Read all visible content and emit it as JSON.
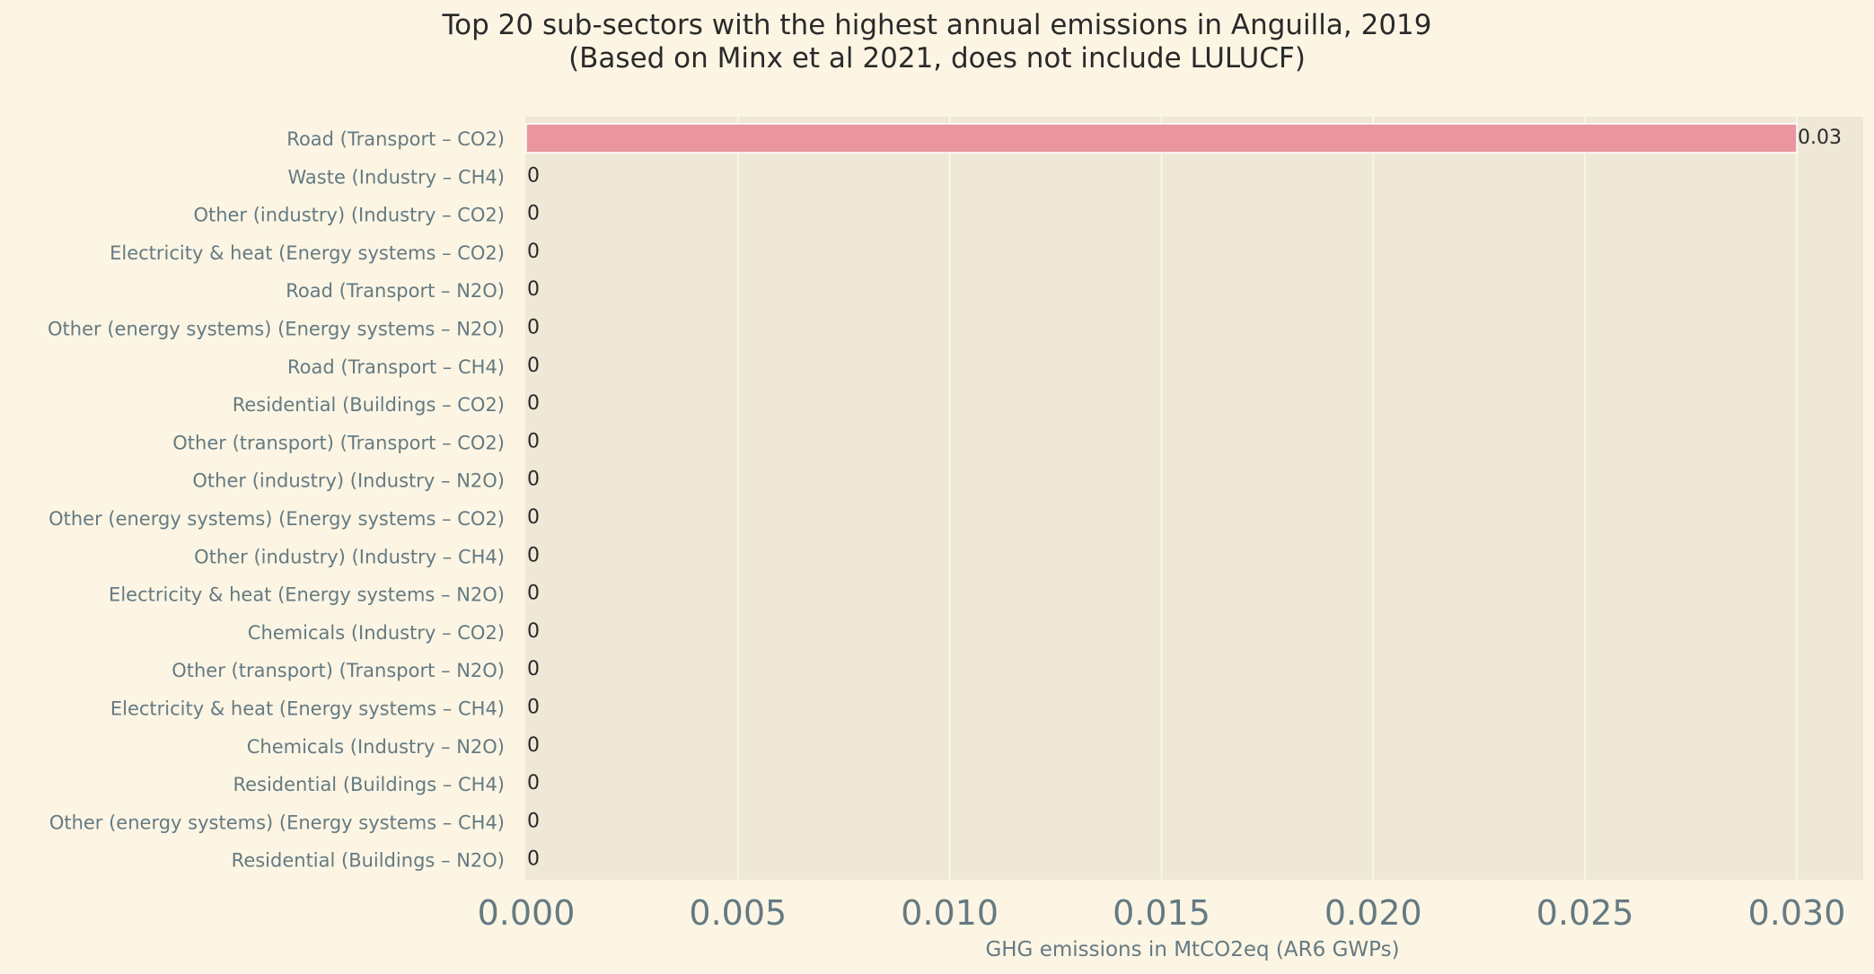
{
  "chart_data": {
    "type": "bar",
    "orientation": "horizontal",
    "title": "Top 20 sub-sectors with the highest annual emissions in Anguilla, 2019",
    "subtitle": "(Based on Minx et al 2021, does not include LULUCF)",
    "xlabel": "GHG emissions in MtCO2eq (AR6 GWPs)",
    "ylabel": "",
    "xlim": [
      0,
      0.0315
    ],
    "xticks": [
      "0.000",
      "0.005",
      "0.010",
      "0.015",
      "0.020",
      "0.025",
      "0.030"
    ],
    "grid": true,
    "categories": [
      "Road (Transport – CO2)",
      "Waste (Industry – CH4)",
      "Other (industry) (Industry – CO2)",
      "Electricity & heat (Energy systems – CO2)",
      "Road (Transport – N2O)",
      "Other (energy systems) (Energy systems – N2O)",
      "Road (Transport – CH4)",
      "Residential (Buildings – CO2)",
      "Other (transport) (Transport – CO2)",
      "Other (industry) (Industry – N2O)",
      "Other (energy systems) (Energy systems – CO2)",
      "Other (industry) (Industry – CH4)",
      "Electricity & heat (Energy systems – N2O)",
      "Chemicals (Industry – CO2)",
      "Other (transport) (Transport – N2O)",
      "Electricity & heat (Energy systems – CH4)",
      "Chemicals (Industry – N2O)",
      "Residential (Buildings – CH4)",
      "Other (energy systems) (Energy systems – CH4)",
      "Residential (Buildings – N2O)"
    ],
    "values": [
      0.03,
      0,
      0,
      0,
      0,
      0,
      0,
      0,
      0,
      0,
      0,
      0,
      0,
      0,
      0,
      0,
      0,
      0,
      0,
      0
    ],
    "value_labels": [
      "0.03",
      "0",
      "0",
      "0",
      "0",
      "0",
      "0",
      "0",
      "0",
      "0",
      "0",
      "0",
      "0",
      "0",
      "0",
      "0",
      "0",
      "0",
      "0",
      "0"
    ],
    "colors": {
      "bar": "#e9969f",
      "plot_background": "#efe8d6",
      "page_background": "#fcf5e4",
      "grid": "#fbf8ef",
      "tick_label": "#647a82",
      "value_label": "#2a2a2a"
    }
  }
}
